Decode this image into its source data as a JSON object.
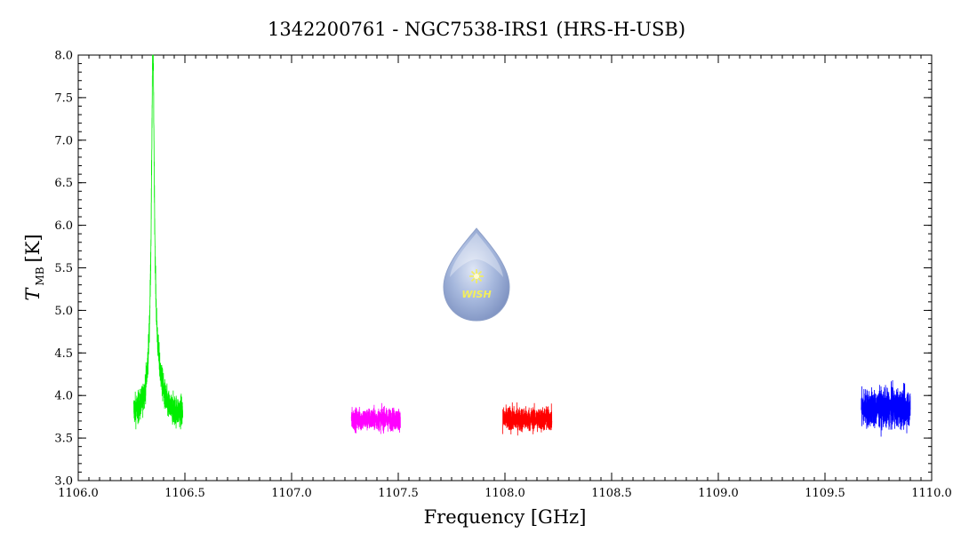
{
  "chart_data": {
    "type": "line",
    "title": "1342200761 - NGC7538-IRS1 (HRS-H-USB)",
    "xlabel": "Frequency [GHz]",
    "ylabel_symbol": "T",
    "ylabel_subscript": "MB",
    "ylabel_unit": "[K]",
    "xlim": [
      1106.0,
      1110.0
    ],
    "ylim": [
      3.0,
      8.0
    ],
    "x_ticks": [
      "1106.0",
      "1106.5",
      "1107.0",
      "1107.5",
      "1108.0",
      "1108.5",
      "1109.0",
      "1109.5",
      "1110.0"
    ],
    "y_ticks": [
      "3.0",
      "3.5",
      "4.0",
      "4.5",
      "5.0",
      "5.5",
      "6.0",
      "6.5",
      "7.0",
      "7.5",
      "8.0"
    ],
    "grid": false,
    "series": [
      {
        "color": "#00ee00",
        "x_start": 1106.26,
        "x_end": 1106.49,
        "baseline": 3.8,
        "noise": 0.18,
        "peak": {
          "center": 1106.35,
          "height": 3.85,
          "width": 0.008
        },
        "shoulder": {
          "center": 1106.36,
          "height": 0.45,
          "width": 0.04
        }
      },
      {
        "color": "#ff00ff",
        "x_start": 1107.28,
        "x_end": 1107.51,
        "baseline": 3.72,
        "noise": 0.13
      },
      {
        "color": "#ff0000",
        "x_start": 1107.99,
        "x_end": 1108.22,
        "baseline": 3.72,
        "noise": 0.14
      },
      {
        "color": "#0000ff",
        "x_start": 1109.67,
        "x_end": 1109.9,
        "baseline": 3.85,
        "noise": 0.22
      }
    ],
    "logo": {
      "text": "WISH",
      "icon": "water-drop-logo"
    }
  }
}
